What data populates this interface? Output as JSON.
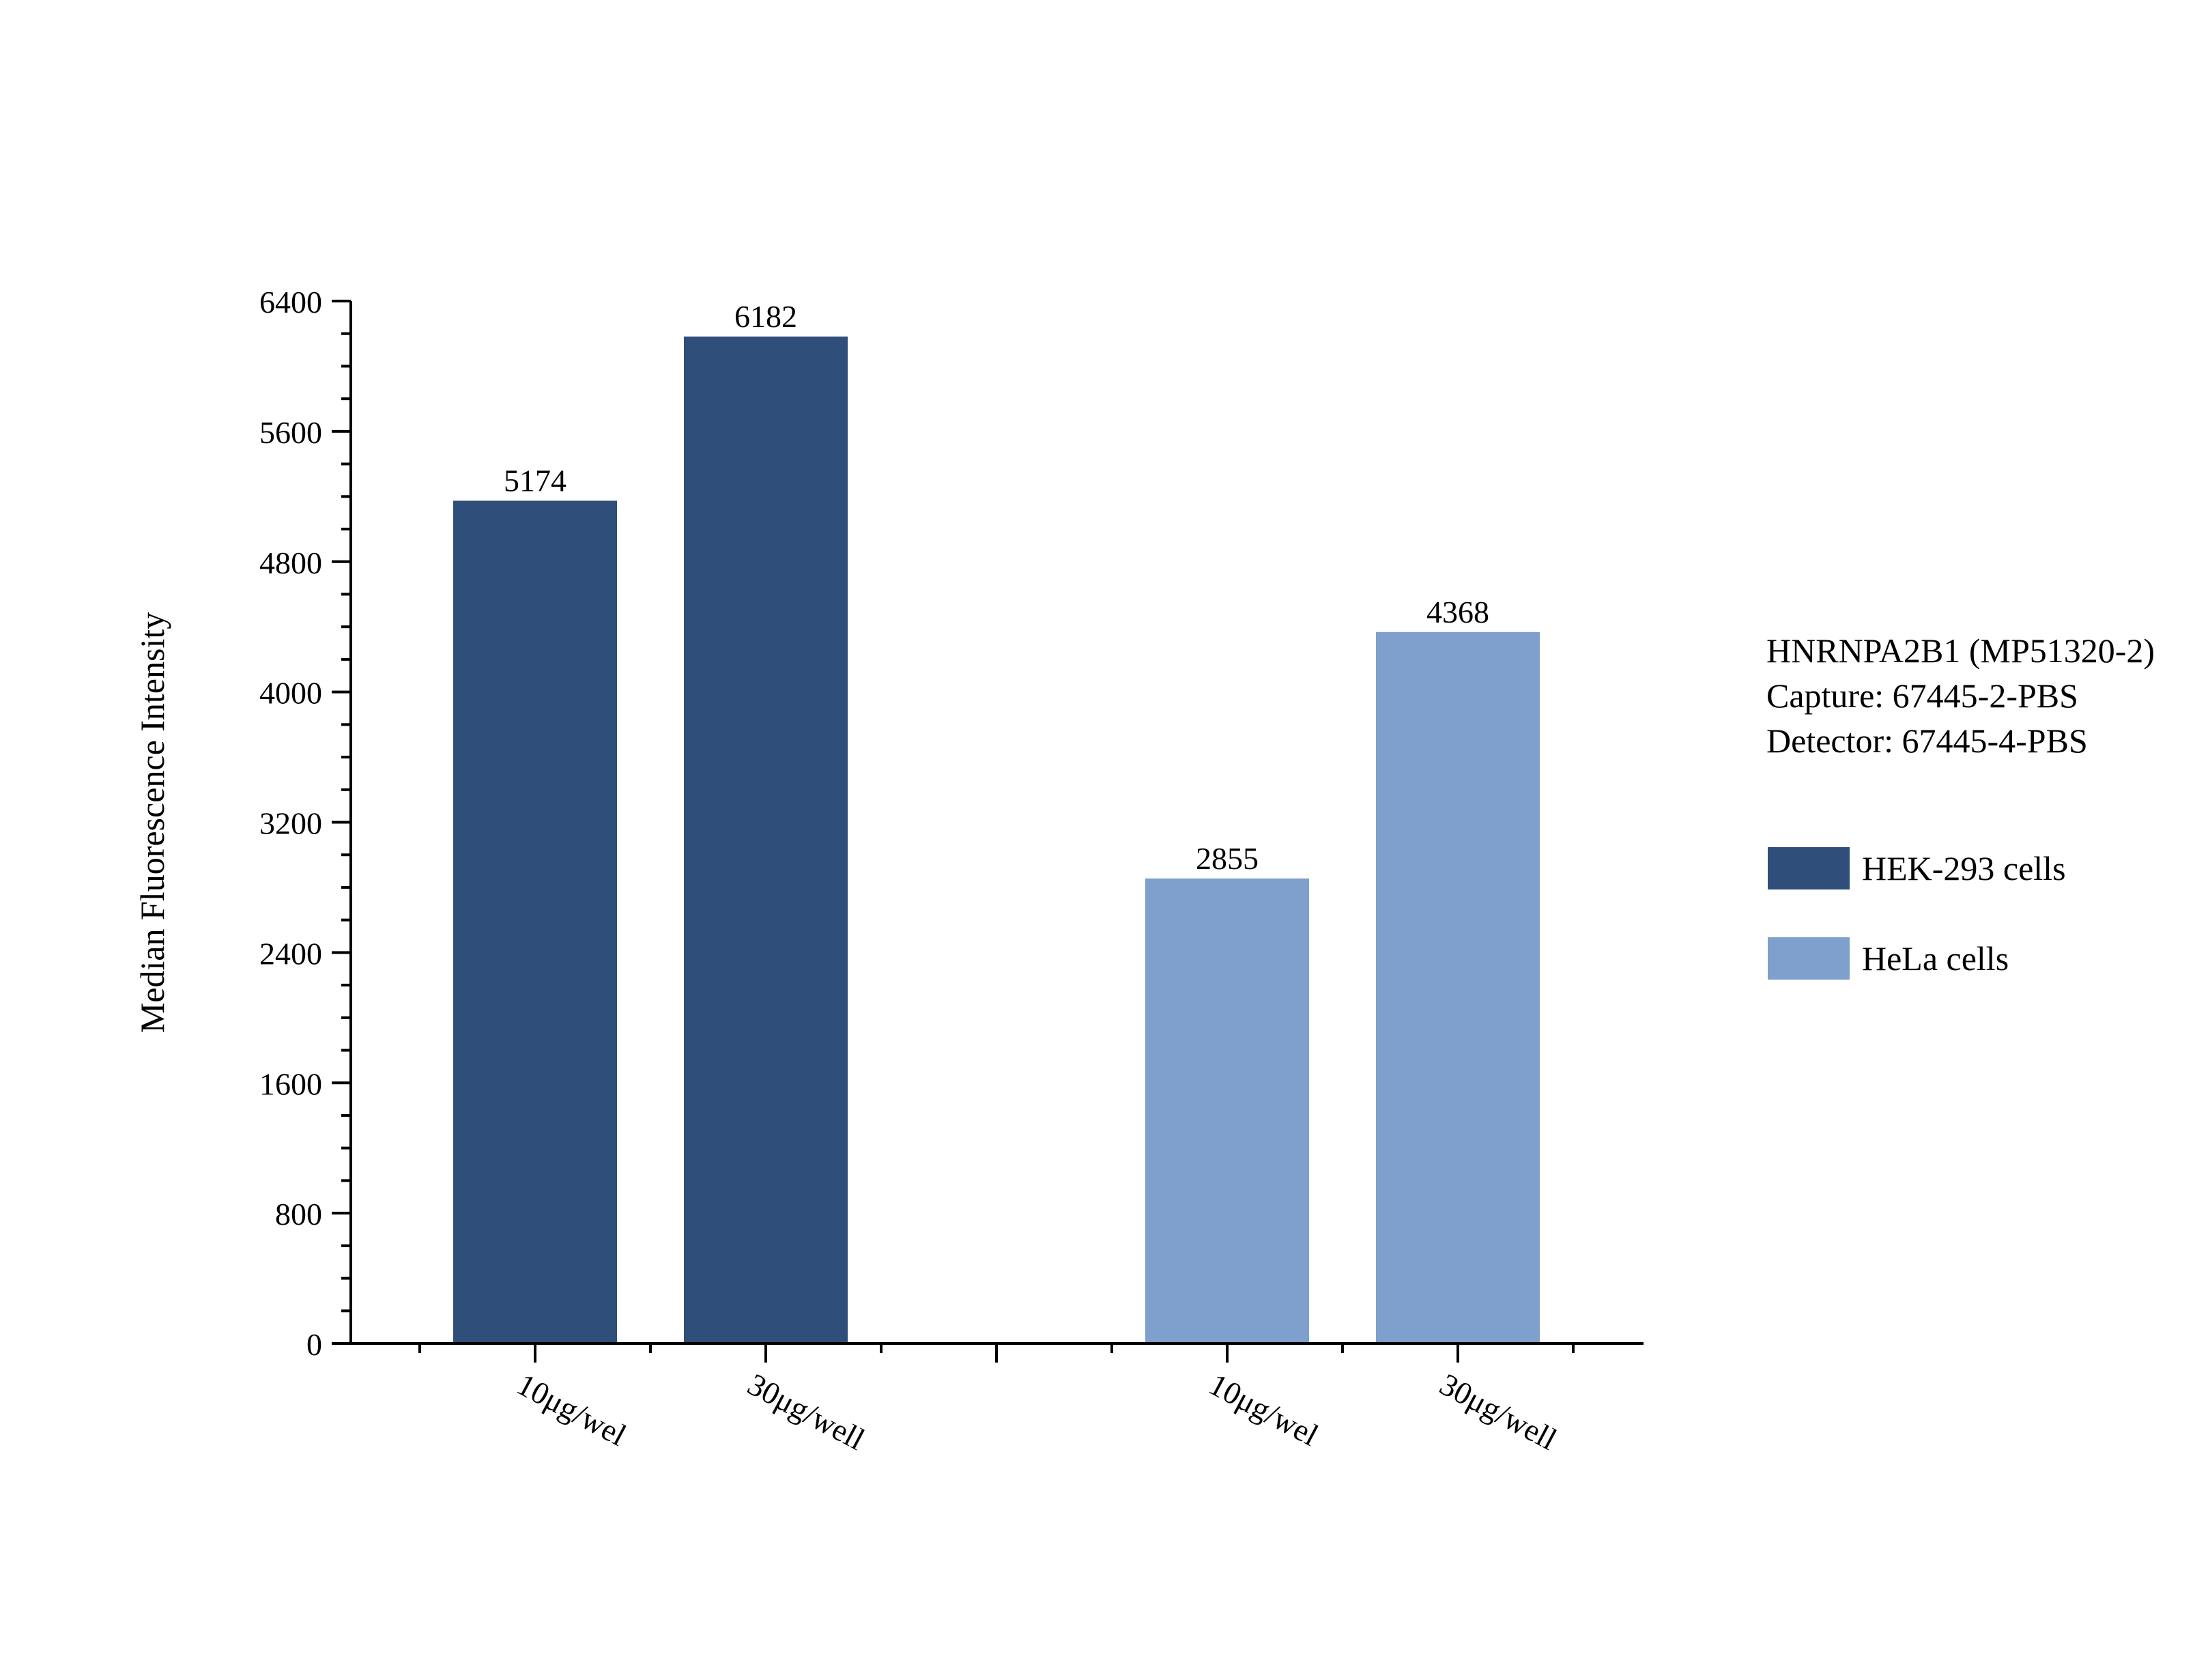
{
  "chart_data": {
    "type": "bar",
    "title": "",
    "ylabel": "Median Fluorescence Intensity",
    "xlabel": "",
    "ylim": [
      0,
      6400
    ],
    "yticks": [
      0,
      800,
      1600,
      2400,
      3200,
      4000,
      4800,
      5600,
      6400
    ],
    "grid": false,
    "legend_position": "right",
    "groups": [
      {
        "name": "HEK-293 cells",
        "color": "#2f4f7a",
        "bars": [
          {
            "category": "10μg/wel",
            "value": 5174
          },
          {
            "category": "30μg/well",
            "value": 6182
          }
        ]
      },
      {
        "name": "HeLa cells",
        "color": "#7f9fcc",
        "bars": [
          {
            "category": "10μg/wel",
            "value": 2855
          },
          {
            "category": "30μg/well",
            "value": 4368
          }
        ]
      }
    ]
  },
  "info": {
    "line1": "HNRNPA2B1 (MP51320-2)",
    "line2": "Capture: 67445-2-PBS",
    "line3": "Detector: 67445-4-PBS"
  },
  "legend": [
    {
      "label": "HEK-293 cells",
      "color": "#2f4f7a"
    },
    {
      "label": "HeLa cells",
      "color": "#7f9fcc"
    }
  ]
}
